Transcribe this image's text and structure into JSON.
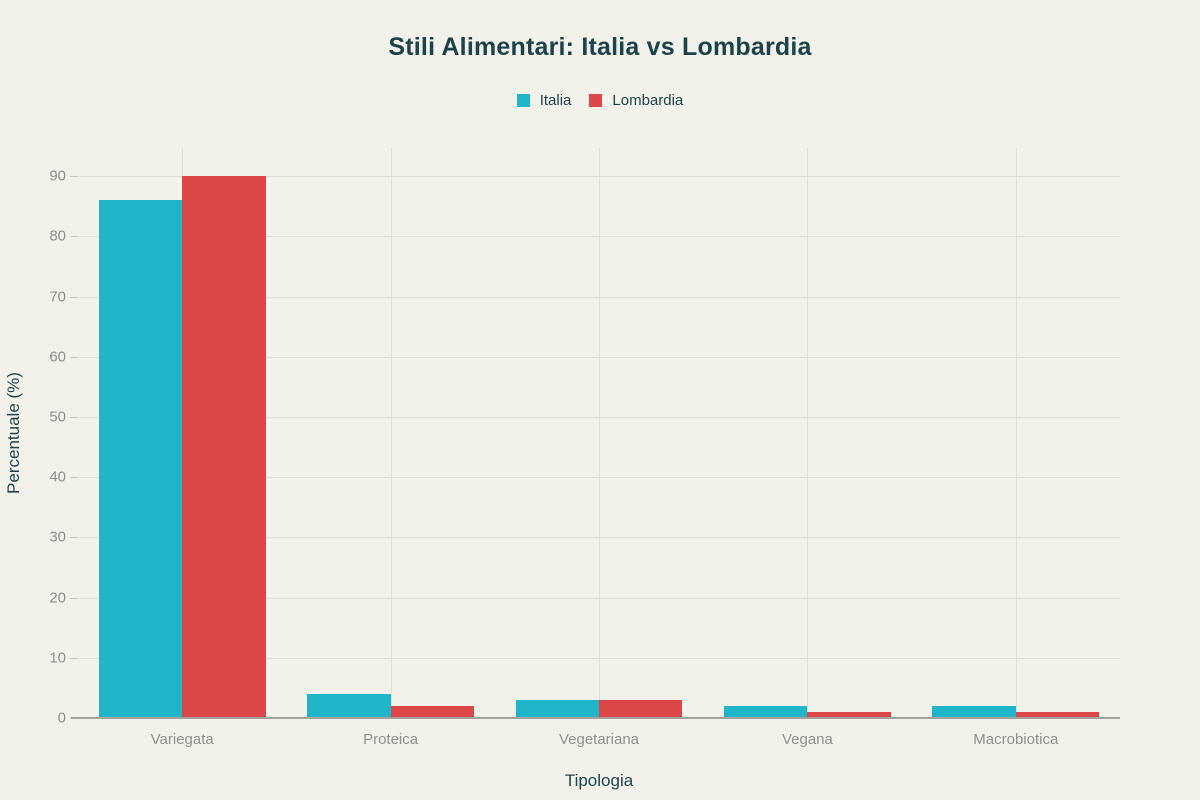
{
  "chart_data": {
    "type": "bar",
    "title": "Stili Alimentari: Italia vs Lombardia",
    "categories": [
      "Variegata",
      "Proteica",
      "Vegetariana",
      "Vegana",
      "Macrobiotica"
    ],
    "series": [
      {
        "name": "Italia",
        "color": "#21b5ca",
        "values": [
          86,
          4,
          3,
          2,
          2
        ]
      },
      {
        "name": "Lombardia",
        "color": "#db4746",
        "values": [
          90,
          2,
          3,
          1,
          1
        ]
      }
    ],
    "xlabel": "Tipologia",
    "ylabel": "Percentuale (%)",
    "ylim": [
      0,
      94.7
    ],
    "yticks": [
      0,
      10,
      20,
      30,
      40,
      50,
      60,
      70,
      80,
      90
    ],
    "grid": true,
    "legend_position": "top-center"
  },
  "colors": {
    "background": "#f2f1ea",
    "text_primary": "#1c434c",
    "text_muted": "#8f918d",
    "gridline": "#e0dfd8",
    "axis_line": "#a3a29c"
  }
}
